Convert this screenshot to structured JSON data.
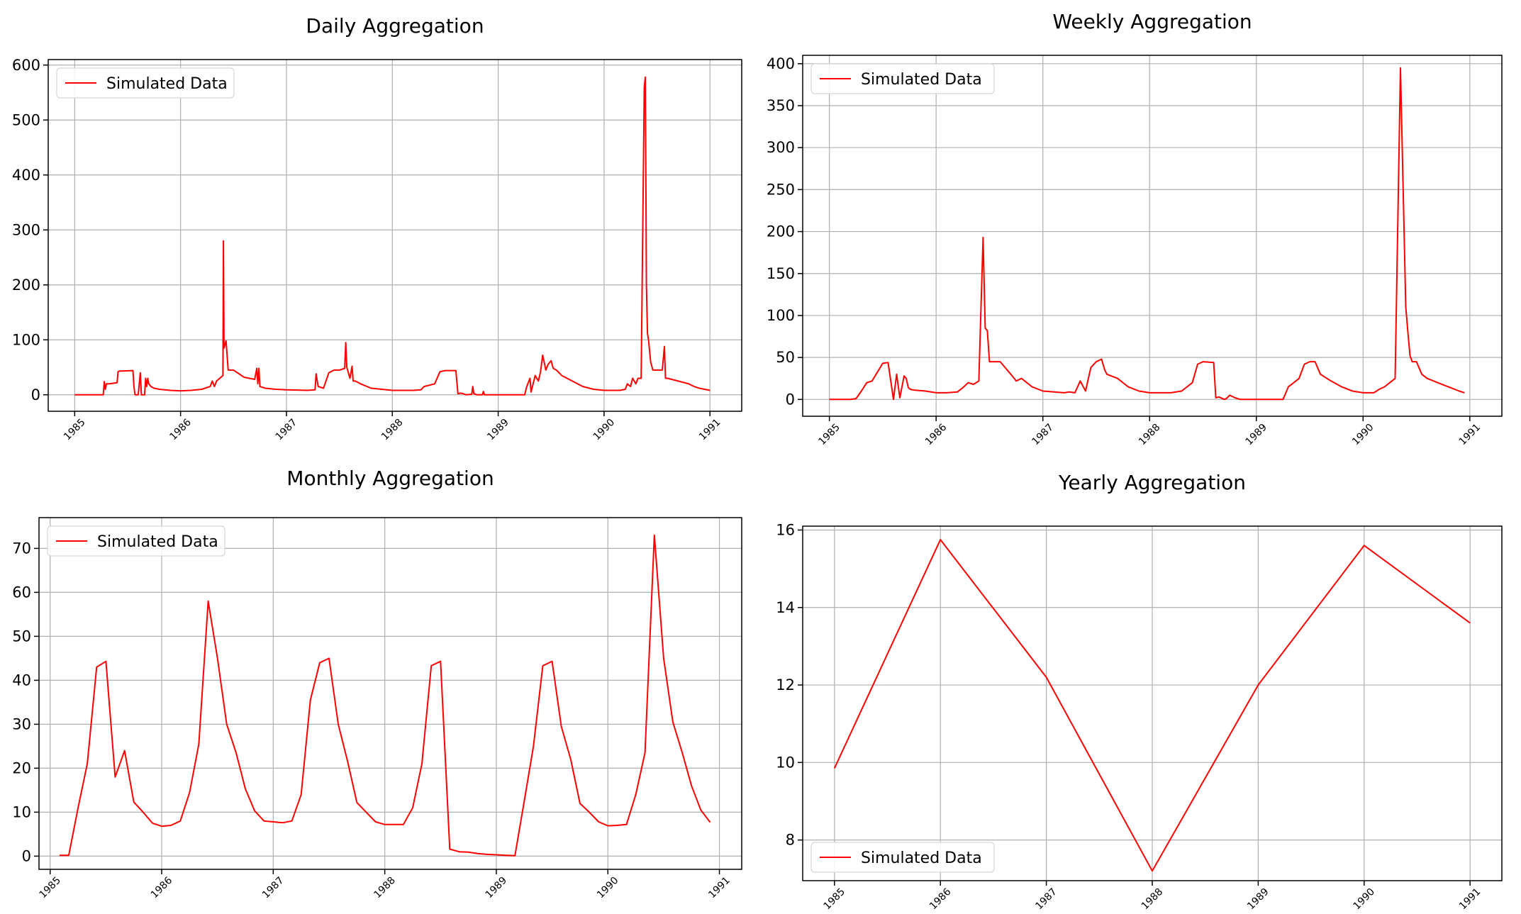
{
  "chart_data": [
    {
      "type": "line",
      "title": "Daily Aggregation",
      "xlabel": "",
      "ylabel": "",
      "xlim": [
        1984.75,
        1991.3
      ],
      "ylim": [
        -30,
        610
      ],
      "xticks": [
        1985,
        1986,
        1987,
        1988,
        1989,
        1990,
        1991
      ],
      "xtick_labels": [
        "1985",
        "1986",
        "1987",
        "1988",
        "1989",
        "1990",
        "1991"
      ],
      "yticks": [
        0,
        100,
        200,
        300,
        400,
        500,
        600
      ],
      "ytick_labels": [
        "0",
        "100",
        "200",
        "300",
        "400",
        "500",
        "600"
      ],
      "grid": true,
      "legend_position": "upper-left",
      "series": [
        {
          "name": "Simulated Data",
          "color": "#ff0000",
          "x": [
            1985.0,
            1985.1,
            1985.27,
            1985.28,
            1985.29,
            1985.3,
            1985.32,
            1985.33,
            1985.4,
            1985.41,
            1985.42,
            1985.55,
            1985.56,
            1985.57,
            1985.6,
            1985.62,
            1985.63,
            1985.66,
            1985.67,
            1985.68,
            1985.69,
            1985.7,
            1985.72,
            1985.75,
            1985.8,
            1985.85,
            1985.9,
            1986.0,
            1986.1,
            1986.2,
            1986.28,
            1986.3,
            1986.32,
            1986.34,
            1986.37,
            1986.4,
            1986.405,
            1986.41,
            1986.43,
            1986.45,
            1986.5,
            1986.6,
            1986.7,
            1986.72,
            1986.73,
            1986.74,
            1986.75,
            1986.8,
            1986.9,
            1987.0,
            1987.2,
            1987.27,
            1987.28,
            1987.3,
            1987.35,
            1987.4,
            1987.45,
            1987.5,
            1987.55,
            1987.56,
            1987.57,
            1987.6,
            1987.62,
            1987.63,
            1987.65,
            1987.7,
            1987.8,
            1987.9,
            1988.0,
            1988.2,
            1988.27,
            1988.3,
            1988.4,
            1988.45,
            1988.5,
            1988.6,
            1988.62,
            1988.65,
            1988.7,
            1988.75,
            1988.76,
            1988.77,
            1988.8,
            1988.85,
            1988.86,
            1988.87,
            1988.9,
            1989.0,
            1989.1,
            1989.25,
            1989.27,
            1989.3,
            1989.31,
            1989.35,
            1989.38,
            1989.4,
            1989.42,
            1989.45,
            1989.47,
            1989.5,
            1989.52,
            1989.55,
            1989.6,
            1989.7,
            1989.8,
            1989.9,
            1990.0,
            1990.1,
            1990.15,
            1990.2,
            1990.22,
            1990.25,
            1990.27,
            1990.3,
            1990.32,
            1990.35,
            1990.38,
            1990.39,
            1990.4,
            1990.41,
            1990.42,
            1990.44,
            1990.46,
            1990.5,
            1990.55,
            1990.57,
            1990.58,
            1990.6,
            1990.7,
            1990.8,
            1990.85,
            1990.9,
            1991.0
          ],
          "values": [
            0,
            0,
            0,
            24,
            10,
            20,
            20,
            20,
            22,
            42,
            43,
            44,
            15,
            0,
            0,
            40,
            0,
            0,
            30,
            15,
            30,
            20,
            15,
            12,
            10,
            9,
            8,
            7,
            8,
            10,
            15,
            25,
            15,
            25,
            30,
            35,
            280,
            85,
            98,
            45,
            45,
            32,
            28,
            48,
            20,
            48,
            15,
            12,
            10,
            9,
            8,
            9,
            38,
            15,
            12,
            40,
            45,
            45,
            48,
            95,
            50,
            30,
            52,
            25,
            25,
            20,
            12,
            10,
            8,
            8,
            9,
            15,
            20,
            42,
            44,
            44,
            2,
            3,
            0,
            1,
            15,
            2,
            0,
            0,
            6,
            0,
            0,
            0,
            0,
            0,
            15,
            30,
            5,
            35,
            25,
            42,
            72,
            45,
            55,
            62,
            48,
            45,
            35,
            25,
            15,
            10,
            8,
            8,
            8,
            10,
            20,
            15,
            30,
            20,
            30,
            30,
            560,
            578,
            200,
            112,
            100,
            60,
            45,
            45,
            45,
            88,
            30,
            30,
            25,
            20,
            15,
            12,
            8
          ]
        }
      ]
    },
    {
      "type": "line",
      "title": "Weekly Aggregation",
      "xlabel": "",
      "ylabel": "",
      "xlim": [
        1984.75,
        1991.3
      ],
      "ylim": [
        -20,
        410
      ],
      "xticks": [
        1985,
        1986,
        1987,
        1988,
        1989,
        1990,
        1991
      ],
      "xtick_labels": [
        "1985",
        "1986",
        "1987",
        "1988",
        "1989",
        "1990",
        "1991"
      ],
      "yticks": [
        0,
        50,
        100,
        150,
        200,
        250,
        300,
        350,
        400
      ],
      "ytick_labels": [
        "0",
        "50",
        "100",
        "150",
        "200",
        "250",
        "300",
        "350",
        "400"
      ],
      "grid": true,
      "legend_position": "upper-left",
      "series": [
        {
          "name": "Simulated Data",
          "color": "#ff0000",
          "x": [
            1985.0,
            1985.1,
            1985.2,
            1985.25,
            1985.3,
            1985.35,
            1985.4,
            1985.5,
            1985.55,
            1985.6,
            1985.63,
            1985.66,
            1985.7,
            1985.72,
            1985.74,
            1985.76,
            1985.8,
            1985.9,
            1986.0,
            1986.1,
            1986.2,
            1986.25,
            1986.3,
            1986.35,
            1986.4,
            1986.44,
            1986.46,
            1986.48,
            1986.5,
            1986.6,
            1986.7,
            1986.75,
            1986.8,
            1986.9,
            1987.0,
            1987.2,
            1987.25,
            1987.3,
            1987.35,
            1987.4,
            1987.45,
            1987.5,
            1987.55,
            1987.58,
            1987.6,
            1987.7,
            1987.8,
            1987.9,
            1988.0,
            1988.2,
            1988.3,
            1988.4,
            1988.45,
            1988.5,
            1988.6,
            1988.62,
            1988.65,
            1988.7,
            1988.72,
            1988.75,
            1988.8,
            1988.85,
            1988.9,
            1989.0,
            1989.25,
            1989.3,
            1989.35,
            1989.4,
            1989.45,
            1989.5,
            1989.55,
            1989.6,
            1989.7,
            1989.8,
            1989.9,
            1990.0,
            1990.1,
            1990.15,
            1990.2,
            1990.25,
            1990.3,
            1990.35,
            1990.4,
            1990.42,
            1990.44,
            1990.46,
            1990.5,
            1990.55,
            1990.6,
            1990.7,
            1990.8,
            1990.9,
            1990.95
          ],
          "values": [
            0,
            0,
            0,
            1,
            10,
            20,
            22,
            43,
            44,
            0,
            30,
            2,
            28,
            25,
            14,
            12,
            11,
            10,
            8,
            8,
            9,
            14,
            20,
            18,
            22,
            193,
            85,
            82,
            45,
            45,
            30,
            22,
            25,
            15,
            10,
            8,
            9,
            8,
            22,
            10,
            38,
            45,
            48,
            35,
            30,
            25,
            15,
            10,
            8,
            8,
            10,
            20,
            42,
            45,
            44,
            2,
            3,
            0,
            1,
            5,
            2,
            0,
            0,
            0,
            0,
            15,
            20,
            25,
            42,
            45,
            45,
            30,
            22,
            15,
            10,
            8,
            8,
            12,
            15,
            20,
            25,
            395,
            110,
            80,
            52,
            45,
            45,
            30,
            25,
            20,
            15,
            10,
            8
          ]
        }
      ]
    },
    {
      "type": "line",
      "title": "Monthly Aggregation",
      "xlabel": "",
      "ylabel": "",
      "xlim": [
        1984.9,
        1991.2
      ],
      "ylim": [
        -3,
        77
      ],
      "xticks": [
        1985,
        1986,
        1987,
        1988,
        1989,
        1990,
        1991
      ],
      "xtick_labels": [
        "1985",
        "1986",
        "1987",
        "1988",
        "1989",
        "1990",
        "1991"
      ],
      "yticks": [
        0,
        10,
        20,
        30,
        40,
        50,
        60,
        70
      ],
      "ytick_labels": [
        "0",
        "10",
        "20",
        "30",
        "40",
        "50",
        "60",
        "70"
      ],
      "grid": true,
      "legend_position": "upper-left",
      "series": [
        {
          "name": "Simulated Data",
          "color": "#ff0000",
          "x": [
            1985.083,
            1985.167,
            1985.25,
            1985.333,
            1985.417,
            1985.5,
            1985.583,
            1985.667,
            1985.75,
            1985.833,
            1985.917,
            1986.0,
            1986.083,
            1986.167,
            1986.25,
            1986.333,
            1986.417,
            1986.5,
            1986.583,
            1986.667,
            1986.75,
            1986.833,
            1986.917,
            1987.0,
            1987.083,
            1987.167,
            1987.25,
            1987.333,
            1987.417,
            1987.5,
            1987.583,
            1987.667,
            1987.75,
            1987.833,
            1987.917,
            1988.0,
            1988.083,
            1988.167,
            1988.25,
            1988.333,
            1988.417,
            1988.5,
            1988.583,
            1988.667,
            1988.75,
            1988.833,
            1988.917,
            1989.0,
            1989.083,
            1989.167,
            1989.25,
            1989.333,
            1989.417,
            1989.5,
            1989.583,
            1989.667,
            1989.75,
            1989.833,
            1989.917,
            1990.0,
            1990.083,
            1990.167,
            1990.25,
            1990.333,
            1990.417,
            1990.5,
            1990.583,
            1990.667,
            1990.75,
            1990.833,
            1990.917
          ],
          "values": [
            0.2,
            0.2,
            11,
            21,
            43,
            44.3,
            18,
            24,
            12.3,
            10,
            7.5,
            6.8,
            7,
            8,
            14.5,
            25.5,
            58,
            45,
            30,
            23.5,
            15.3,
            10.3,
            8,
            7.8,
            7.6,
            8,
            14,
            35.5,
            44,
            45,
            30,
            21.5,
            12.2,
            10,
            7.8,
            7.2,
            7.2,
            7.2,
            11,
            21,
            43.3,
            44.3,
            1.6,
            1,
            0.9,
            0.6,
            0.4,
            0.3,
            0.2,
            0.1,
            12.5,
            25,
            43.3,
            44.3,
            29.5,
            22,
            12,
            10,
            7.8,
            6.9,
            7,
            7.2,
            14,
            23.5,
            73,
            45,
            30.5,
            23.5,
            16,
            10.5,
            7.7
          ]
        }
      ]
    },
    {
      "type": "line",
      "title": "Yearly Aggregation",
      "xlabel": "",
      "ylabel": "",
      "xlim": [
        1984.7,
        1991.3
      ],
      "ylim": [
        6.95,
        16.1
      ],
      "xticks": [
        1985,
        1986,
        1987,
        1988,
        1989,
        1990,
        1991
      ],
      "xtick_labels": [
        "1985",
        "1986",
        "1987",
        "1988",
        "1989",
        "1990",
        "1991"
      ],
      "yticks": [
        8,
        10,
        12,
        14,
        16
      ],
      "ytick_labels": [
        "8",
        "10",
        "12",
        "14",
        "16"
      ],
      "grid": true,
      "legend_position": "lower-left",
      "series": [
        {
          "name": "Simulated Data",
          "color": "#ff0000",
          "x": [
            1985,
            1986,
            1987,
            1988,
            1989,
            1990,
            1991
          ],
          "values": [
            9.85,
            15.75,
            12.2,
            7.2,
            12.0,
            15.6,
            13.6
          ]
        }
      ]
    }
  ]
}
